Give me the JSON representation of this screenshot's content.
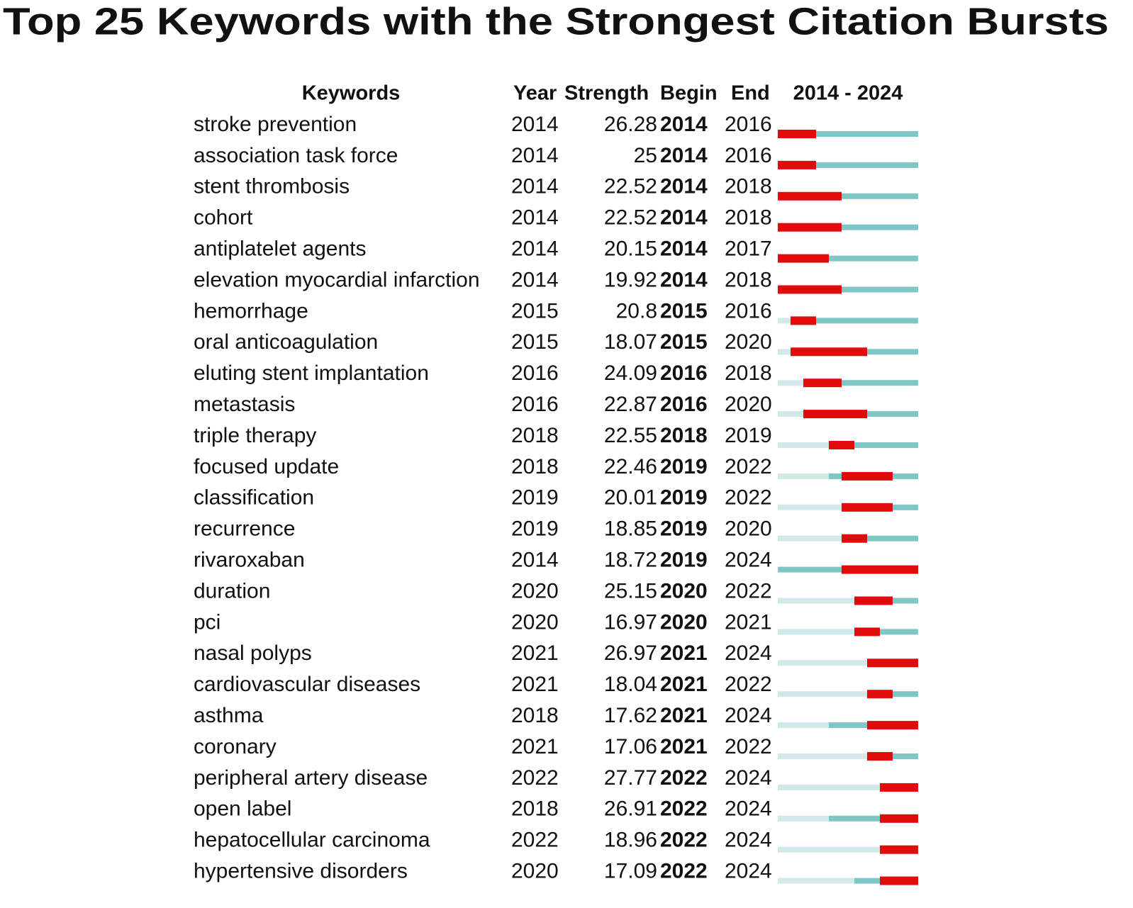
{
  "chart_data": {
    "type": "burst",
    "title": "Top 25 Keywords with the Strongest Citation Bursts",
    "headers": [
      "Keywords",
      "Year",
      "Strength",
      "Begin",
      "End"
    ],
    "range_label": "2014 - 2024",
    "xlim": [
      2014,
      2024
    ],
    "keywords": [
      "stroke prevention",
      "association task force",
      "stent thrombosis",
      "cohort",
      "antiplatelet agents",
      "elevation myocardial infarction",
      "hemorrhage",
      "oral anticoagulation",
      "eluting stent implantation",
      "metastasis",
      "triple therapy",
      "focused update",
      "classification",
      "recurrence",
      "rivaroxaban",
      "duration",
      "pci",
      "nasal polyps",
      "cardiovascular diseases",
      "asthma",
      "coronary",
      "peripheral artery disease",
      "open label",
      "hepatocellular carcinoma",
      "hypertensive disorders"
    ],
    "year": [
      2014,
      2014,
      2014,
      2014,
      2014,
      2014,
      2015,
      2015,
      2016,
      2016,
      2018,
      2018,
      2019,
      2019,
      2014,
      2020,
      2020,
      2021,
      2021,
      2018,
      2021,
      2022,
      2018,
      2022,
      2020
    ],
    "strength": [
      26.28,
      25,
      22.52,
      22.52,
      20.15,
      19.92,
      20.8,
      18.07,
      24.09,
      22.87,
      22.55,
      22.46,
      20.01,
      18.85,
      18.72,
      25.15,
      16.97,
      26.97,
      18.04,
      17.62,
      17.06,
      27.77,
      26.91,
      18.96,
      17.09
    ],
    "begin": [
      2014,
      2014,
      2014,
      2014,
      2014,
      2014,
      2015,
      2015,
      2016,
      2016,
      2018,
      2019,
      2019,
      2019,
      2019,
      2020,
      2020,
      2021,
      2021,
      2021,
      2021,
      2022,
      2022,
      2022,
      2022
    ],
    "end": [
      2016,
      2016,
      2018,
      2018,
      2017,
      2018,
      2016,
      2020,
      2018,
      2020,
      2019,
      2022,
      2022,
      2020,
      2024,
      2022,
      2021,
      2024,
      2022,
      2024,
      2022,
      2024,
      2024,
      2024,
      2024
    ],
    "colors": {
      "before": "#d3e8e8",
      "active": "#7fc6c6",
      "burst": "#e00b0b"
    }
  }
}
